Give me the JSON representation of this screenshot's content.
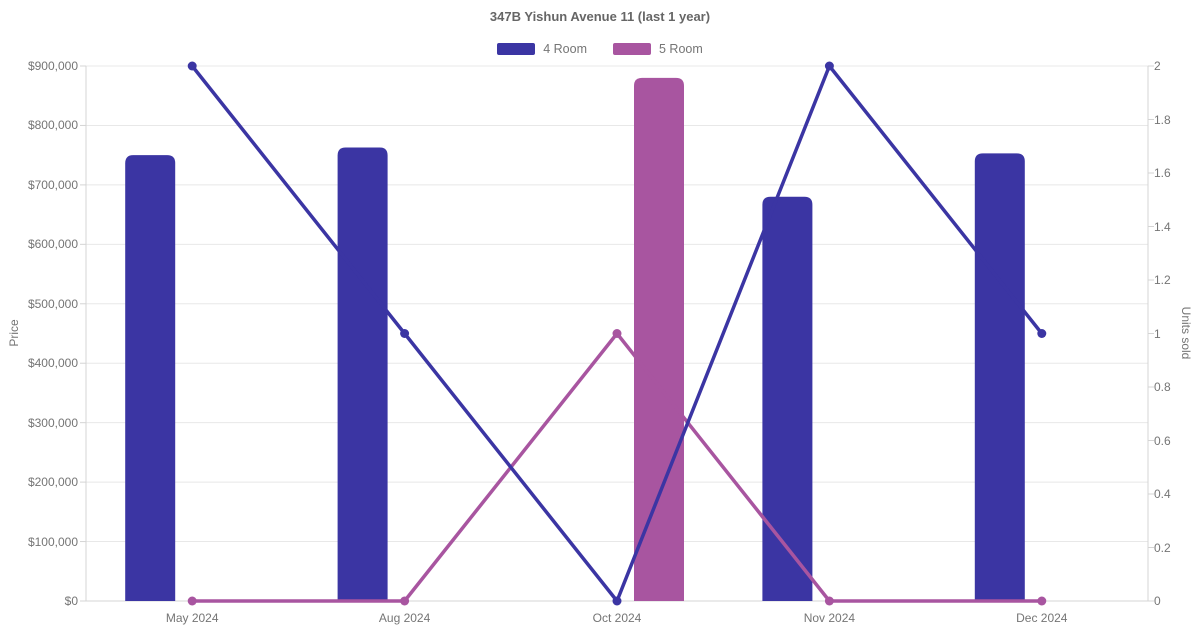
{
  "title": "347B Yishun Avenue 11 (last 1 year)",
  "legend": [
    {
      "label": "4 Room",
      "color": "#3B35A3"
    },
    {
      "label": "5 Room",
      "color": "#A855A0"
    }
  ],
  "chart_data": {
    "type": "combo-bar-line",
    "categories": [
      "May 2024",
      "Aug 2024",
      "Oct 2024",
      "Nov 2024",
      "Dec 2024"
    ],
    "bar_series": [
      {
        "name": "4 Room",
        "color": "#3B35A3",
        "axis": "left",
        "values": [
          750000,
          763000,
          null,
          680000,
          753000
        ]
      },
      {
        "name": "5 Room",
        "color": "#A855A0",
        "axis": "left",
        "values": [
          null,
          null,
          880000,
          null,
          null
        ]
      }
    ],
    "line_series": [
      {
        "name": "4 Room",
        "color": "#3B35A3",
        "axis": "right",
        "values": [
          2,
          1,
          0,
          2,
          1
        ]
      },
      {
        "name": "5 Room",
        "color": "#A855A0",
        "axis": "right",
        "values": [
          0,
          0,
          1,
          0,
          0
        ]
      }
    ],
    "left_axis": {
      "label": "Price",
      "min": 0,
      "max": 900000,
      "tick_labels": [
        "$0",
        "$100,000",
        "$200,000",
        "$300,000",
        "$400,000",
        "$500,000",
        "$600,000",
        "$700,000",
        "$800,000",
        "$900,000"
      ]
    },
    "right_axis": {
      "label": "Units sold",
      "min": 0,
      "max": 2,
      "tick_labels": [
        "0",
        "0.2",
        "0.4",
        "0.6",
        "0.8",
        "1",
        "1.2",
        "1.4",
        "1.6",
        "1.8",
        "2"
      ]
    },
    "grid": "horizontal",
    "legend_position": "top",
    "colors": {
      "background": "#ffffff",
      "gridline": "#e8e8e8",
      "axis_line": "#d4d4d4",
      "tick_text": "#757575",
      "title_text": "#666666"
    }
  }
}
